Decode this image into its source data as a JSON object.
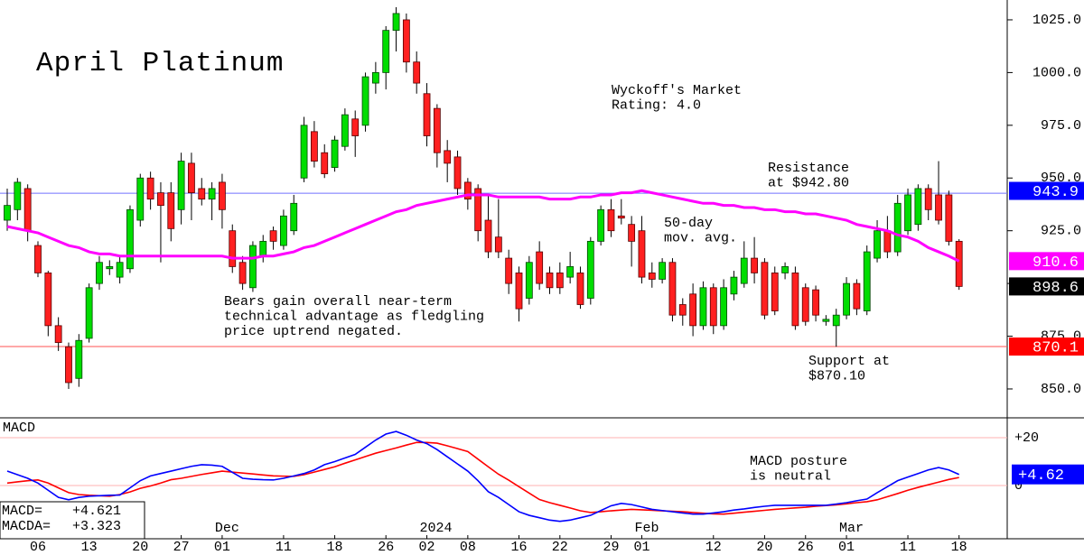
{
  "chart_data": [
    {
      "type": "candlestick",
      "title": "April Platinum",
      "categories": [
        null,
        null,
        null,
        "06",
        null,
        null,
        null,
        null,
        "13",
        null,
        null,
        null,
        null,
        "20",
        null,
        null,
        null,
        "27",
        null,
        null,
        null,
        "01",
        null,
        null,
        null,
        null,
        null,
        "11",
        null,
        null,
        null,
        null,
        "18",
        null,
        null,
        null,
        null,
        "26",
        null,
        null,
        null,
        "02",
        null,
        null,
        null,
        "08",
        null,
        null,
        null,
        null,
        "16",
        null,
        null,
        null,
        "22",
        null,
        null,
        null,
        null,
        "29",
        null,
        null,
        "01",
        null,
        null,
        null,
        null,
        null,
        null,
        "12",
        null,
        null,
        null,
        null,
        "20",
        null,
        null,
        null,
        "26",
        null,
        null,
        null,
        "01",
        null,
        null,
        null,
        null,
        null,
        "11",
        null,
        null,
        null,
        null,
        "18"
      ],
      "month_labels": [
        null,
        null,
        null,
        null,
        null,
        null,
        null,
        null,
        null,
        null,
        null,
        null,
        null,
        null,
        null,
        null,
        null,
        null,
        null,
        null,
        null,
        "Dec",
        null,
        null,
        null,
        null,
        null,
        null,
        null,
        null,
        null,
        null,
        null,
        null,
        null,
        null,
        null,
        null,
        null,
        null,
        null,
        "2024",
        null,
        null,
        null,
        null,
        null,
        null,
        null,
        null,
        null,
        null,
        null,
        null,
        null,
        null,
        null,
        null,
        null,
        null,
        null,
        null,
        "Feb",
        null,
        null,
        null,
        null,
        null,
        null,
        null,
        null,
        null,
        null,
        null,
        null,
        null,
        null,
        null,
        null,
        null,
        null,
        null,
        "Mar",
        null,
        null,
        null,
        null,
        null,
        null,
        null,
        null,
        null,
        null,
        null
      ],
      "open": [
        930,
        935,
        945,
        918,
        905,
        880,
        870,
        855,
        874,
        900,
        907,
        903,
        907,
        930,
        950,
        943,
        943,
        935,
        957,
        945,
        940,
        948,
        925,
        910,
        898,
        913,
        925,
        918,
        925,
        950,
        972,
        962,
        955,
        965,
        978,
        975,
        995,
        1000,
        1020,
        1025,
        1005,
        990,
        983,
        963,
        960,
        948,
        945,
        930,
        922,
        912,
        905,
        893,
        915,
        905,
        905,
        903,
        905,
        893,
        920,
        935,
        932,
        928,
        925,
        905,
        902,
        910,
        890,
        895,
        880,
        898,
        880,
        895,
        900,
        912,
        910,
        905,
        905,
        905,
        898,
        897,
        882,
        880,
        885,
        900,
        887,
        912,
        925,
        915,
        925,
        928,
        945,
        942,
        942,
        920
      ],
      "high": [
        945,
        950,
        947,
        920,
        906,
        884,
        872,
        876,
        900,
        913,
        911,
        913,
        937,
        952,
        953,
        948,
        948,
        962,
        962,
        950,
        948,
        952,
        928,
        913,
        920,
        923,
        927,
        935,
        942,
        979,
        977,
        966,
        970,
        983,
        982,
        1000,
        1005,
        1022,
        1031,
        1028,
        1010,
        995,
        985,
        968,
        963,
        950,
        947,
        942,
        940,
        916,
        908,
        913,
        920,
        908,
        910,
        915,
        908,
        922,
        937,
        940,
        940,
        932,
        932,
        910,
        912,
        912,
        893,
        900,
        901,
        900,
        902,
        906,
        920,
        922,
        912,
        908,
        910,
        908,
        900,
        899,
        885,
        888,
        903,
        902,
        918,
        930,
        932,
        942,
        945,
        947,
        947,
        958,
        944,
        921
      ],
      "low": [
        925,
        930,
        920,
        903,
        875,
        868,
        850,
        851,
        872,
        897,
        904,
        900,
        905,
        927,
        935,
        910,
        920,
        928,
        930,
        937,
        930,
        926,
        905,
        897,
        896,
        910,
        916,
        916,
        923,
        948,
        955,
        950,
        953,
        963,
        960,
        972,
        990,
        992,
        1010,
        1000,
        990,
        965,
        955,
        948,
        942,
        935,
        920,
        912,
        912,
        895,
        882,
        890,
        897,
        895,
        895,
        900,
        888,
        890,
        918,
        922,
        928,
        908,
        900,
        898,
        900,
        882,
        880,
        875,
        878,
        876,
        878,
        892,
        898,
        900,
        883,
        885,
        902,
        878,
        880,
        882,
        880,
        870,
        883,
        885,
        885,
        910,
        912,
        913,
        923,
        925,
        930,
        928,
        918,
        897
      ],
      "close": [
        937,
        948,
        925,
        905,
        880,
        872,
        853,
        873,
        898,
        910,
        908,
        910,
        935,
        950,
        940,
        937,
        926,
        958,
        943,
        940,
        945,
        935,
        908,
        900,
        918,
        920,
        920,
        932,
        938,
        975,
        958,
        952,
        968,
        980,
        970,
        998,
        1000,
        1020,
        1028,
        1005,
        995,
        970,
        962,
        957,
        945,
        940,
        925,
        915,
        915,
        900,
        888,
        910,
        900,
        898,
        898,
        908,
        890,
        920,
        935,
        925,
        931,
        920,
        903,
        902,
        910,
        885,
        885,
        880,
        898,
        880,
        898,
        903,
        912,
        905,
        885,
        887,
        908,
        880,
        882,
        885,
        883,
        885,
        900,
        888,
        915,
        925,
        915,
        938,
        942,
        945,
        935,
        930,
        920,
        898.6
      ],
      "up_color": "#00dd00",
      "down_color": "#ff2020",
      "ylim": [
        836.3,
        1034.4
      ],
      "yticks": [
        {
          "value": 850,
          "label": "850.0"
        },
        {
          "value": 875,
          "label": "875.0"
        },
        {
          "value": 900,
          "label": "900.0"
        },
        {
          "value": 925,
          "label": "925.0"
        },
        {
          "value": 950,
          "label": "950.0"
        },
        {
          "value": 975,
          "label": "975.0"
        },
        {
          "value": 1000,
          "label": "1000.0"
        },
        {
          "value": 1025,
          "label": "1025.0"
        }
      ],
      "moving_average": {
        "color": "#ff00ff",
        "values": [
          927,
          926,
          925,
          924,
          922,
          920,
          918,
          917,
          915,
          914,
          914,
          913,
          913,
          913,
          913,
          913,
          913,
          913,
          913,
          913,
          913,
          913,
          912,
          912,
          912,
          913,
          913,
          914,
          915,
          917,
          918,
          920,
          922,
          924,
          926,
          928,
          930,
          932,
          934,
          935,
          937,
          938,
          939,
          940,
          941,
          942,
          942,
          942,
          941,
          941,
          941,
          941,
          941,
          940,
          940,
          940,
          941,
          941,
          942,
          942,
          943,
          943,
          944,
          943,
          942,
          941,
          940,
          939,
          938,
          938,
          937,
          937,
          936,
          936,
          935,
          935,
          934,
          934,
          933,
          933,
          932,
          931,
          930,
          928,
          927,
          926,
          925,
          923,
          922,
          920,
          917,
          915,
          913,
          910.6
        ]
      },
      "resistance": {
        "value": 942.8,
        "color": "#7070ff"
      },
      "support": {
        "value": 870.1,
        "color": "#ff5050"
      },
      "price_markers": [
        {
          "value": 943.9,
          "color": "#0000ff"
        },
        {
          "value": 910.6,
          "color": "#ff00ff"
        },
        {
          "value": 898.6,
          "color": "#000000"
        },
        {
          "value": 870.1,
          "color": "#ff0000"
        }
      ],
      "annotations": [
        {
          "lines": [
            "Wyckoff's Market",
            "Rating: 4.0"
          ],
          "color": "#000000"
        },
        {
          "lines": [
            "Resistance",
            "at $942.80"
          ],
          "color": "#0000ff"
        },
        {
          "lines": [
            "50-day",
            "mov. avg."
          ],
          "color": "#ff00ff"
        },
        {
          "lines": [
            "Bears gain overall near-term",
            "technical advantage as fledgling",
            "price uptrend negated."
          ],
          "color": "#000000"
        },
        {
          "lines": [
            "Support at",
            "$870.10"
          ],
          "color": "#ff0000"
        }
      ]
    },
    {
      "type": "line",
      "label": "MACD",
      "ylim": [
        -22.3,
        28.3
      ],
      "yticks": [
        {
          "value": 20,
          "label": "+20"
        },
        0
      ],
      "series": [
        {
          "color": "#0000ff",
          "values": [
            6,
            4.5,
            3,
            1,
            -2,
            -5,
            -6,
            -5,
            -4.5,
            -4.3,
            -4.1,
            -4,
            -1,
            2,
            4,
            5,
            6,
            7,
            8,
            8.7,
            8.5,
            8,
            5.5,
            3,
            2.6,
            2.4,
            2.3,
            3,
            4,
            5,
            6.5,
            8.7,
            10,
            11.5,
            13,
            16,
            19,
            21.5,
            22.6,
            21,
            19,
            17.5,
            15,
            12,
            9,
            6,
            2,
            -2.6,
            -5,
            -8,
            -11,
            -12.5,
            -13.5,
            -14.5,
            -15,
            -14.5,
            -13.5,
            -12.5,
            -10.5,
            -8.5,
            -7.5,
            -8,
            -9,
            -10,
            -10.5,
            -11,
            -11.5,
            -12,
            -12,
            -11.5,
            -11,
            -10.3,
            -9.8,
            -9.2,
            -8.7,
            -8.3,
            -8.3,
            -8.3,
            -8.3,
            -8.3,
            -8.3,
            -7.8,
            -7.2,
            -6.4,
            -5.7,
            -3,
            -0.5,
            2,
            3.5,
            5,
            6.5,
            7.5,
            6.5,
            4.621
          ]
        },
        {
          "color": "#ff0000",
          "values": [
            1,
            1.5,
            2,
            2.3,
            1,
            -1,
            -3,
            -3.8,
            -4.1,
            -4.3,
            -4.5,
            -3.8,
            -2.7,
            -1.2,
            -0.2,
            1,
            2.4,
            3,
            3.8,
            4.6,
            5.3,
            6,
            5.6,
            5.2,
            4.8,
            4.4,
            4,
            3.9,
            3.8,
            4.5,
            5.6,
            6.7,
            7.8,
            9.3,
            10.7,
            12.1,
            13.5,
            14.6,
            15.7,
            16.9,
            18,
            18,
            17.7,
            16.6,
            15.4,
            14.2,
            11,
            7.8,
            4.7,
            2.2,
            -0.5,
            -3.2,
            -5.9,
            -7.2,
            -8.3,
            -9.4,
            -10.6,
            -11.3,
            -11,
            -10.6,
            -10.3,
            -10,
            -10.2,
            -10.4,
            -10.6,
            -10.8,
            -11,
            -11.3,
            -11.6,
            -11.9,
            -12,
            -11.6,
            -11.2,
            -10.8,
            -10.4,
            -10,
            -9.7,
            -9.4,
            -9.1,
            -8.7,
            -8.4,
            -8.1,
            -7.7,
            -7.2,
            -6.8,
            -6,
            -4.7,
            -3.4,
            -2,
            -0.8,
            0.3,
            1.4,
            2.5,
            3.323
          ]
        }
      ],
      "marker": {
        "value": 4.62,
        "label": "+4.62",
        "color": "#0000ff"
      },
      "readouts": [
        {
          "name": "MACD=",
          "value": "+4.621"
        },
        {
          "name": "MACDA=",
          "value": "+3.323"
        }
      ],
      "annotations": [
        {
          "lines": [
            "MACD posture",
            "is neutral"
          ],
          "color": "#000000"
        }
      ]
    }
  ]
}
